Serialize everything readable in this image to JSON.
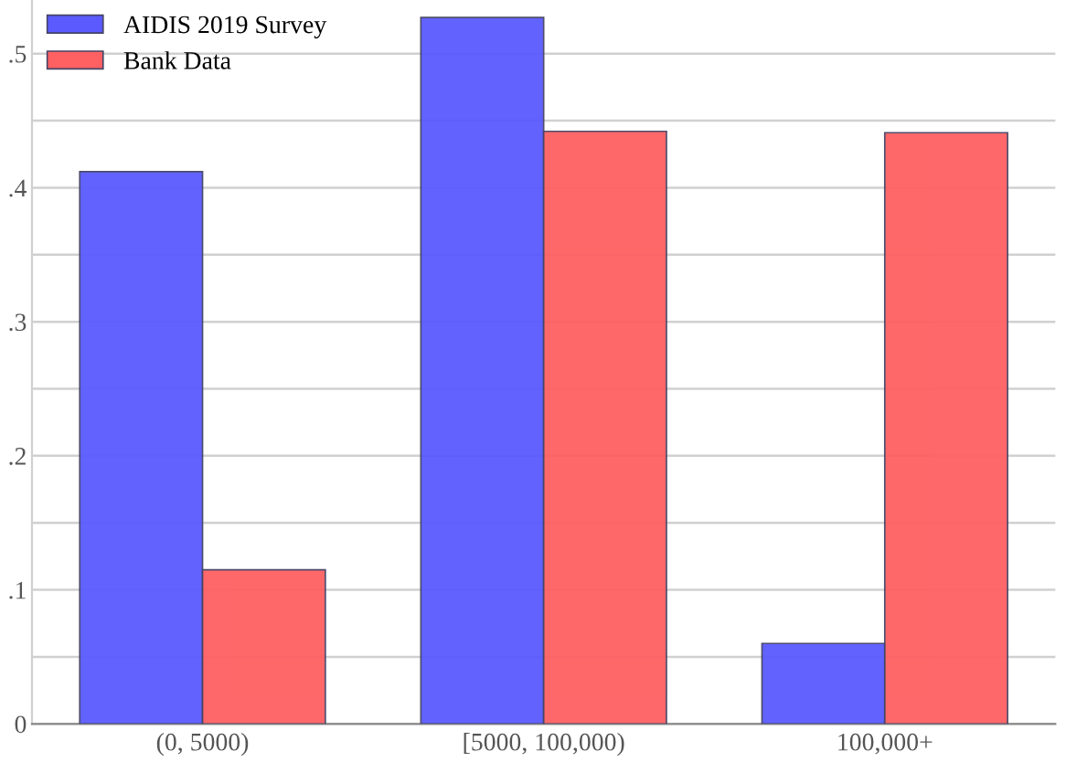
{
  "chart_data": {
    "type": "bar",
    "categories": [
      "(0, 5000)",
      "[5000, 100,000)",
      "100,000+"
    ],
    "series": [
      {
        "name": "AIDIS 2019 Survey",
        "color": "#5a5aff",
        "values": [
          0.412,
          0.527,
          0.06
        ]
      },
      {
        "name": "Bank Data",
        "color": "#ff6062",
        "values": [
          0.115,
          0.442,
          0.441
        ]
      }
    ],
    "ylim": [
      0,
      0.54
    ],
    "yticks": [
      {
        "value": 0,
        "label": "0"
      },
      {
        "value": 0.05,
        "label": null
      },
      {
        "value": 0.1,
        "label": ".1"
      },
      {
        "value": 0.15,
        "label": null
      },
      {
        "value": 0.2,
        "label": ".2"
      },
      {
        "value": 0.25,
        "label": null
      },
      {
        "value": 0.3,
        "label": ".3"
      },
      {
        "value": 0.35,
        "label": null
      },
      {
        "value": 0.4,
        "label": ".4"
      },
      {
        "value": 0.45,
        "label": null
      },
      {
        "value": 0.5,
        "label": ".5"
      }
    ],
    "grid": "y",
    "legend": "top left"
  }
}
